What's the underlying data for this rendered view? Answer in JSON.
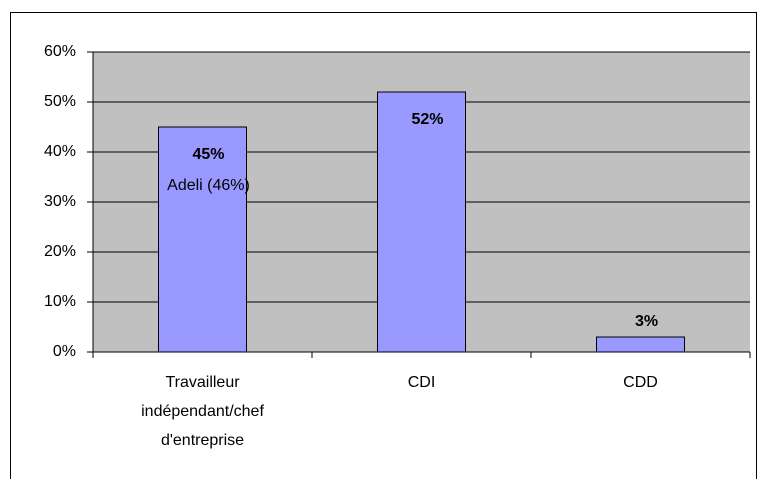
{
  "chart_data": {
    "type": "bar",
    "categories": [
      "Travailleur indépendant/chef d'entreprise",
      "CDI",
      "CDD"
    ],
    "values": [
      45,
      52,
      3
    ],
    "value_labels": [
      "45%",
      "52%",
      "3%"
    ],
    "color": "#9999ff",
    "background": "#c0c0c0",
    "ylim": [
      0,
      60
    ],
    "yticks": [
      {
        "value": 0,
        "label": "0%"
      },
      {
        "value": 10,
        "label": "10%"
      },
      {
        "value": 20,
        "label": "20%"
      },
      {
        "value": 30,
        "label": "30%"
      },
      {
        "value": 40,
        "label": "40%"
      },
      {
        "value": 50,
        "label": "50%"
      },
      {
        "value": 60,
        "label": "60%"
      }
    ],
    "grid": true,
    "annotations": [
      "Adeli (46%)"
    ]
  }
}
